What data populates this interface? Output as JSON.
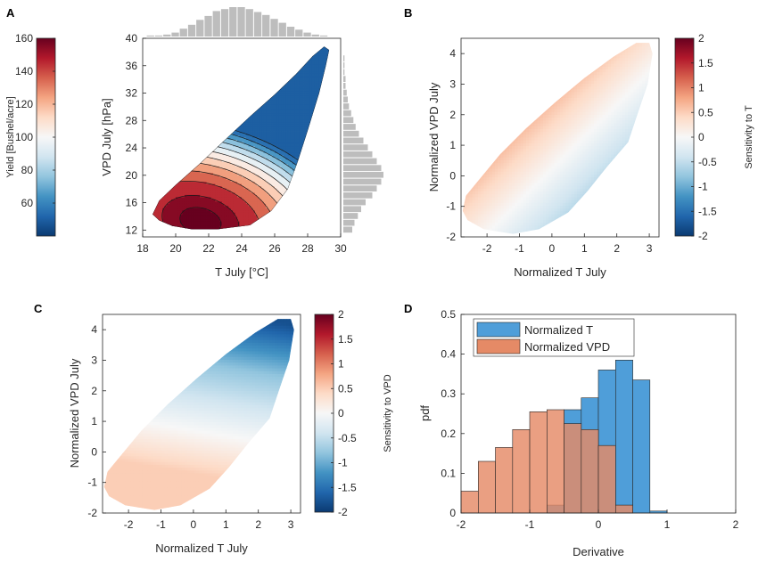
{
  "chart_data": [
    {
      "panel": "A",
      "type": "heatmap",
      "xlabel": "T July [°C]",
      "ylabel": "VPD July  [hPa]",
      "xlim": [
        18,
        30
      ],
      "ylim": [
        11,
        40
      ],
      "xticks": [
        "18",
        "20",
        "22",
        "24",
        "26",
        "28",
        "30"
      ],
      "yticks": [
        "12",
        "16",
        "20",
        "24",
        "28",
        "32",
        "36",
        "40"
      ],
      "colorbar": {
        "label": "Yield [Bushel/acre]",
        "range": [
          40,
          160
        ],
        "ticks": [
          "60",
          "80",
          "100",
          "120",
          "140",
          "160"
        ]
      },
      "contour_levels": [
        50,
        60,
        70,
        80,
        90,
        100,
        110,
        120,
        130,
        140,
        150,
        155
      ],
      "peak": {
        "t": 21.5,
        "vpd": 13.3,
        "yield": 157
      },
      "marginal_t": {
        "bins": [
          18.5,
          19,
          19.5,
          20,
          20.5,
          21,
          21.5,
          22,
          22.5,
          23,
          23.5,
          24,
          24.5,
          25,
          25.5,
          26,
          26.5,
          27,
          27.5,
          28,
          28.5,
          29
        ],
        "counts": [
          1,
          1,
          2,
          4,
          8,
          12,
          17,
          21,
          26,
          28,
          30,
          30,
          28,
          25,
          22,
          18,
          14,
          10,
          7,
          4,
          2,
          1
        ]
      },
      "marginal_vpd": {
        "bins": [
          12,
          13,
          14,
          15,
          16,
          17,
          18,
          19,
          20,
          21,
          22,
          23,
          24,
          25,
          26,
          27,
          28,
          29,
          30,
          31,
          32,
          33,
          34,
          35,
          36,
          37
        ],
        "counts": [
          8,
          10,
          13,
          16,
          20,
          26,
          30,
          34,
          36,
          34,
          30,
          26,
          22,
          18,
          14,
          11,
          9,
          7,
          5,
          4,
          3,
          2,
          2,
          1,
          1,
          1
        ]
      }
    },
    {
      "panel": "B",
      "type": "heatmap",
      "xlabel": "Normalized T July",
      "ylabel": "Normalized VPD July",
      "xlim": [
        -2.8,
        3.3
      ],
      "ylim": [
        -2,
        4.5
      ],
      "xticks": [
        "-2",
        "-1",
        "0",
        "1",
        "2",
        "3"
      ],
      "yticks": [
        "-2",
        "-1",
        "0",
        "1",
        "2",
        "3",
        "4"
      ],
      "colorbar": {
        "label": "Sensitivity to T",
        "range": [
          -2,
          2
        ],
        "ticks": [
          "2",
          "1.5",
          "1",
          "0.5",
          "0",
          "-0.5",
          "-1",
          "-1.5",
          "-2"
        ]
      },
      "sensitivity_model": {
        "at_upper_left": 0.6,
        "at_lower_right": -0.6
      }
    },
    {
      "panel": "C",
      "type": "heatmap",
      "xlabel": "Normalized T July",
      "ylabel": "Normalized VPD July",
      "xlim": [
        -2.8,
        3.3
      ],
      "ylim": [
        -2,
        4.5
      ],
      "xticks": [
        "-2",
        "-1",
        "0",
        "1",
        "2",
        "3"
      ],
      "yticks": [
        "-2",
        "-1",
        "0",
        "1",
        "2",
        "3",
        "4"
      ],
      "colorbar": {
        "label": "Sensitivity to VPD",
        "range": [
          -2,
          2
        ],
        "ticks": [
          "2",
          "1.5",
          "1",
          "0.5",
          "0",
          "-0.5",
          "-1",
          "-1.5",
          "-2"
        ]
      },
      "sensitivity_model": {
        "at_top": -1.8,
        "at_bottom": 0.5
      }
    },
    {
      "panel": "D",
      "type": "bar",
      "xlabel": "Derivative",
      "ylabel": "pdf",
      "xlim": [
        -2,
        2
      ],
      "ylim": [
        0,
        0.5
      ],
      "xticks": [
        "-2",
        "-1",
        "0",
        "1",
        "2"
      ],
      "yticks": [
        "0",
        "0.1",
        "0.2",
        "0.3",
        "0.4",
        "0.5"
      ],
      "bin_width": 0.25,
      "legend_position": "top-left",
      "series": [
        {
          "name": "Normalized T",
          "color": "#4f9ed9",
          "bin_edges": [
            -1.25,
            -1.0,
            -0.75,
            -0.5,
            -0.25,
            0,
            0.25,
            0.5,
            0.75
          ],
          "values": [
            0.0,
            0.0,
            0.02,
            0.26,
            0.29,
            0.36,
            0.385,
            0.335,
            0.005
          ]
        },
        {
          "name": "Normalized VPD",
          "color": "#e58a66",
          "bin_edges": [
            -2.0,
            -1.75,
            -1.5,
            -1.25,
            -1.0,
            -0.75,
            -0.5,
            -0.25,
            0,
            0.25
          ],
          "values": [
            0.055,
            0.13,
            0.165,
            0.21,
            0.255,
            0.26,
            0.225,
            0.21,
            0.17,
            0.02
          ]
        }
      ]
    }
  ],
  "panel_labels": [
    "A",
    "B",
    "C",
    "D"
  ],
  "colors": {
    "diverging": [
      "#0b3a72",
      "#2166ac",
      "#4393c3",
      "#92c5de",
      "#d1e5f0",
      "#f7f7f7",
      "#fddbc7",
      "#f4a582",
      "#d6604d",
      "#b2182b",
      "#67001f"
    ],
    "marginal": "#bdbdbd"
  }
}
